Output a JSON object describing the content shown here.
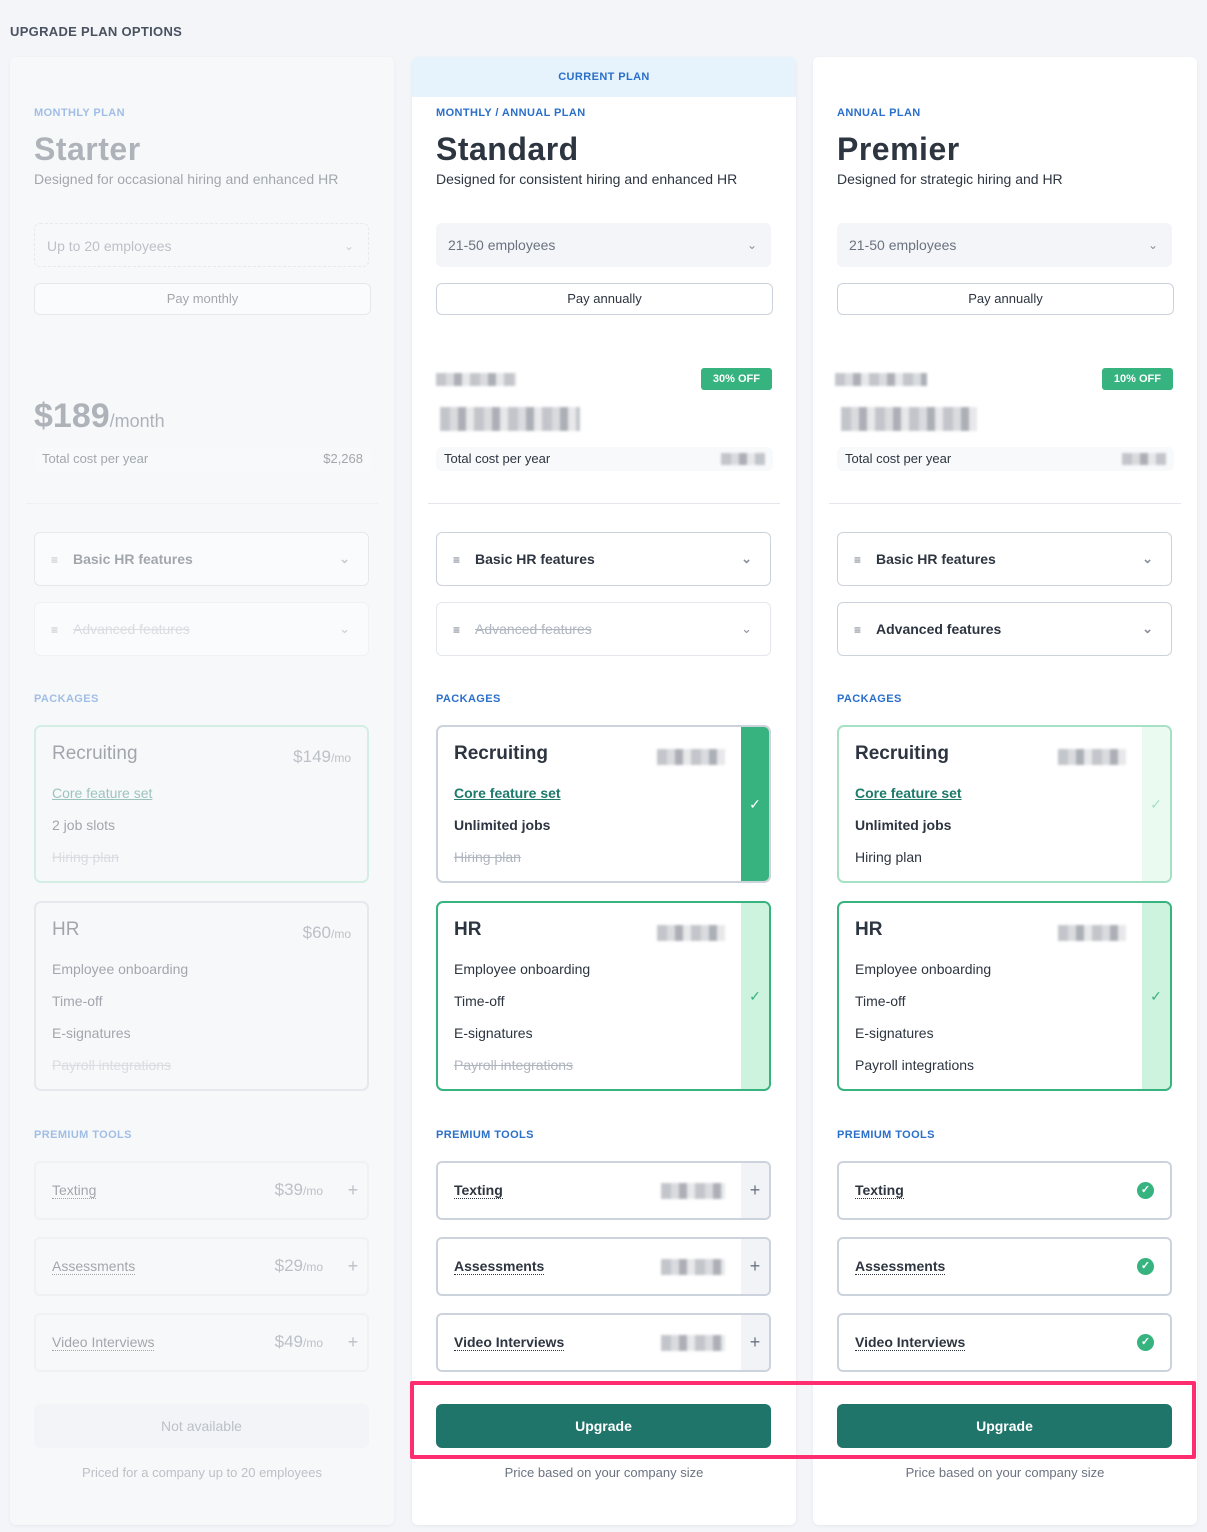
{
  "page": {
    "heading": "UPGRADE PLAN OPTIONS"
  },
  "colors": {
    "accent_blue": "#2a6fc9",
    "green": "#36b37e",
    "upgrade_button": "#20756b",
    "highlight": "#ff2d6f"
  },
  "plans": [
    {
      "name": "Starter",
      "type": "MONTHLY PLAN",
      "description": "Designed for occasional hiring and enhanced HR",
      "employees": "Up to 20 employees",
      "billing": "Pay monthly",
      "price": "$189",
      "price_unit": "/month",
      "total_label": "Total cost per year",
      "total_value": "$2,268",
      "features": [
        {
          "label": "Basic HR features"
        },
        {
          "label": "Advanced features"
        }
      ],
      "packages_label": "PACKAGES",
      "packages": [
        {
          "name": "Recruiting",
          "price": "$149",
          "unit": "/mo",
          "items": [
            "Core feature set",
            "2 job slots",
            "Hiring plan"
          ]
        },
        {
          "name": "HR",
          "price": "$60",
          "unit": "/mo",
          "items": [
            "Employee onboarding",
            "Time-off",
            "E-signatures",
            "Payroll integrations"
          ]
        }
      ],
      "tools_label": "PREMIUM TOOLS",
      "tools": [
        {
          "name": "Texting",
          "price": "$39",
          "unit": "/mo"
        },
        {
          "name": "Assessments",
          "price": "$29",
          "unit": "/mo"
        },
        {
          "name": "Video Interviews",
          "price": "$49",
          "unit": "/mo"
        }
      ],
      "button": "Not available",
      "footer": "Priced for a company up to 20 employees"
    },
    {
      "name": "Standard",
      "banner": "CURRENT PLAN",
      "type": "MONTHLY / ANNUAL PLAN",
      "description": "Designed for consistent hiring and enhanced HR",
      "employees": "21-50 employees",
      "billing": "Pay annually",
      "discount": "30% OFF",
      "total_label": "Total cost per year",
      "features": [
        {
          "label": "Basic HR features"
        },
        {
          "label": "Advanced features"
        }
      ],
      "packages_label": "PACKAGES",
      "packages": [
        {
          "name": "Recruiting",
          "items": [
            "Core feature set",
            "Unlimited jobs",
            "Hiring plan"
          ]
        },
        {
          "name": "HR",
          "items": [
            "Employee onboarding",
            "Time-off",
            "E-signatures",
            "Payroll integrations"
          ]
        }
      ],
      "tools_label": "PREMIUM TOOLS",
      "tools": [
        {
          "name": "Texting"
        },
        {
          "name": "Assessments"
        },
        {
          "name": "Video Interviews"
        }
      ],
      "button": "Upgrade",
      "footer": "Price based on your company size"
    },
    {
      "name": "Premier",
      "type": "ANNUAL PLAN",
      "description": "Designed for strategic hiring and HR",
      "employees": "21-50 employees",
      "billing": "Pay annually",
      "discount": "10% OFF",
      "total_label": "Total cost per year",
      "features": [
        {
          "label": "Basic HR features"
        },
        {
          "label": "Advanced features"
        }
      ],
      "packages_label": "PACKAGES",
      "packages": [
        {
          "name": "Recruiting",
          "items": [
            "Core feature set",
            "Unlimited jobs",
            "Hiring plan"
          ]
        },
        {
          "name": "HR",
          "items": [
            "Employee onboarding",
            "Time-off",
            "E-signatures",
            "Payroll integrations"
          ]
        }
      ],
      "tools_label": "PREMIUM TOOLS",
      "tools": [
        {
          "name": "Texting"
        },
        {
          "name": "Assessments"
        },
        {
          "name": "Video Interviews"
        }
      ],
      "button": "Upgrade",
      "footer": "Price based on your company size"
    }
  ]
}
